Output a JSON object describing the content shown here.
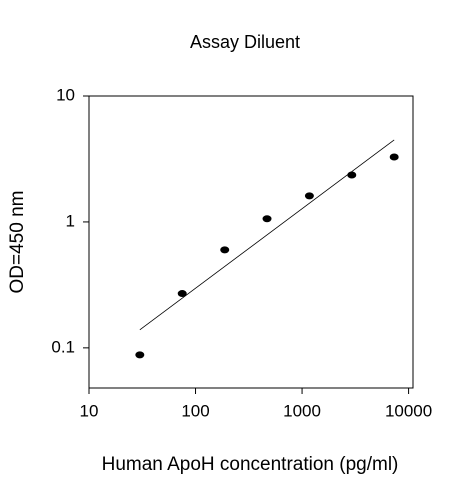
{
  "chart_data": {
    "type": "scatter",
    "title": "Assay Diluent",
    "x_label": "Human ApoH concentration (pg/ml)",
    "y_label": "OD=450 nm",
    "x": [
      30,
      75,
      188,
      469,
      1172,
      2930,
      7324
    ],
    "values": [
      0.088,
      0.27,
      0.6,
      1.06,
      1.61,
      2.36,
      3.28
    ],
    "color": "#000000",
    "fit": {
      "x": [
        30,
        7324
      ],
      "values": [
        0.139,
        4.48
      ],
      "color": "#000000"
    },
    "xscale": "log",
    "yscale": "log",
    "xlim": [
      10,
      11000
    ],
    "ylim": [
      0.048,
      10
    ],
    "xticks": [
      10,
      100,
      1000,
      10000
    ],
    "yticks": [
      0.1,
      1,
      10
    ]
  }
}
